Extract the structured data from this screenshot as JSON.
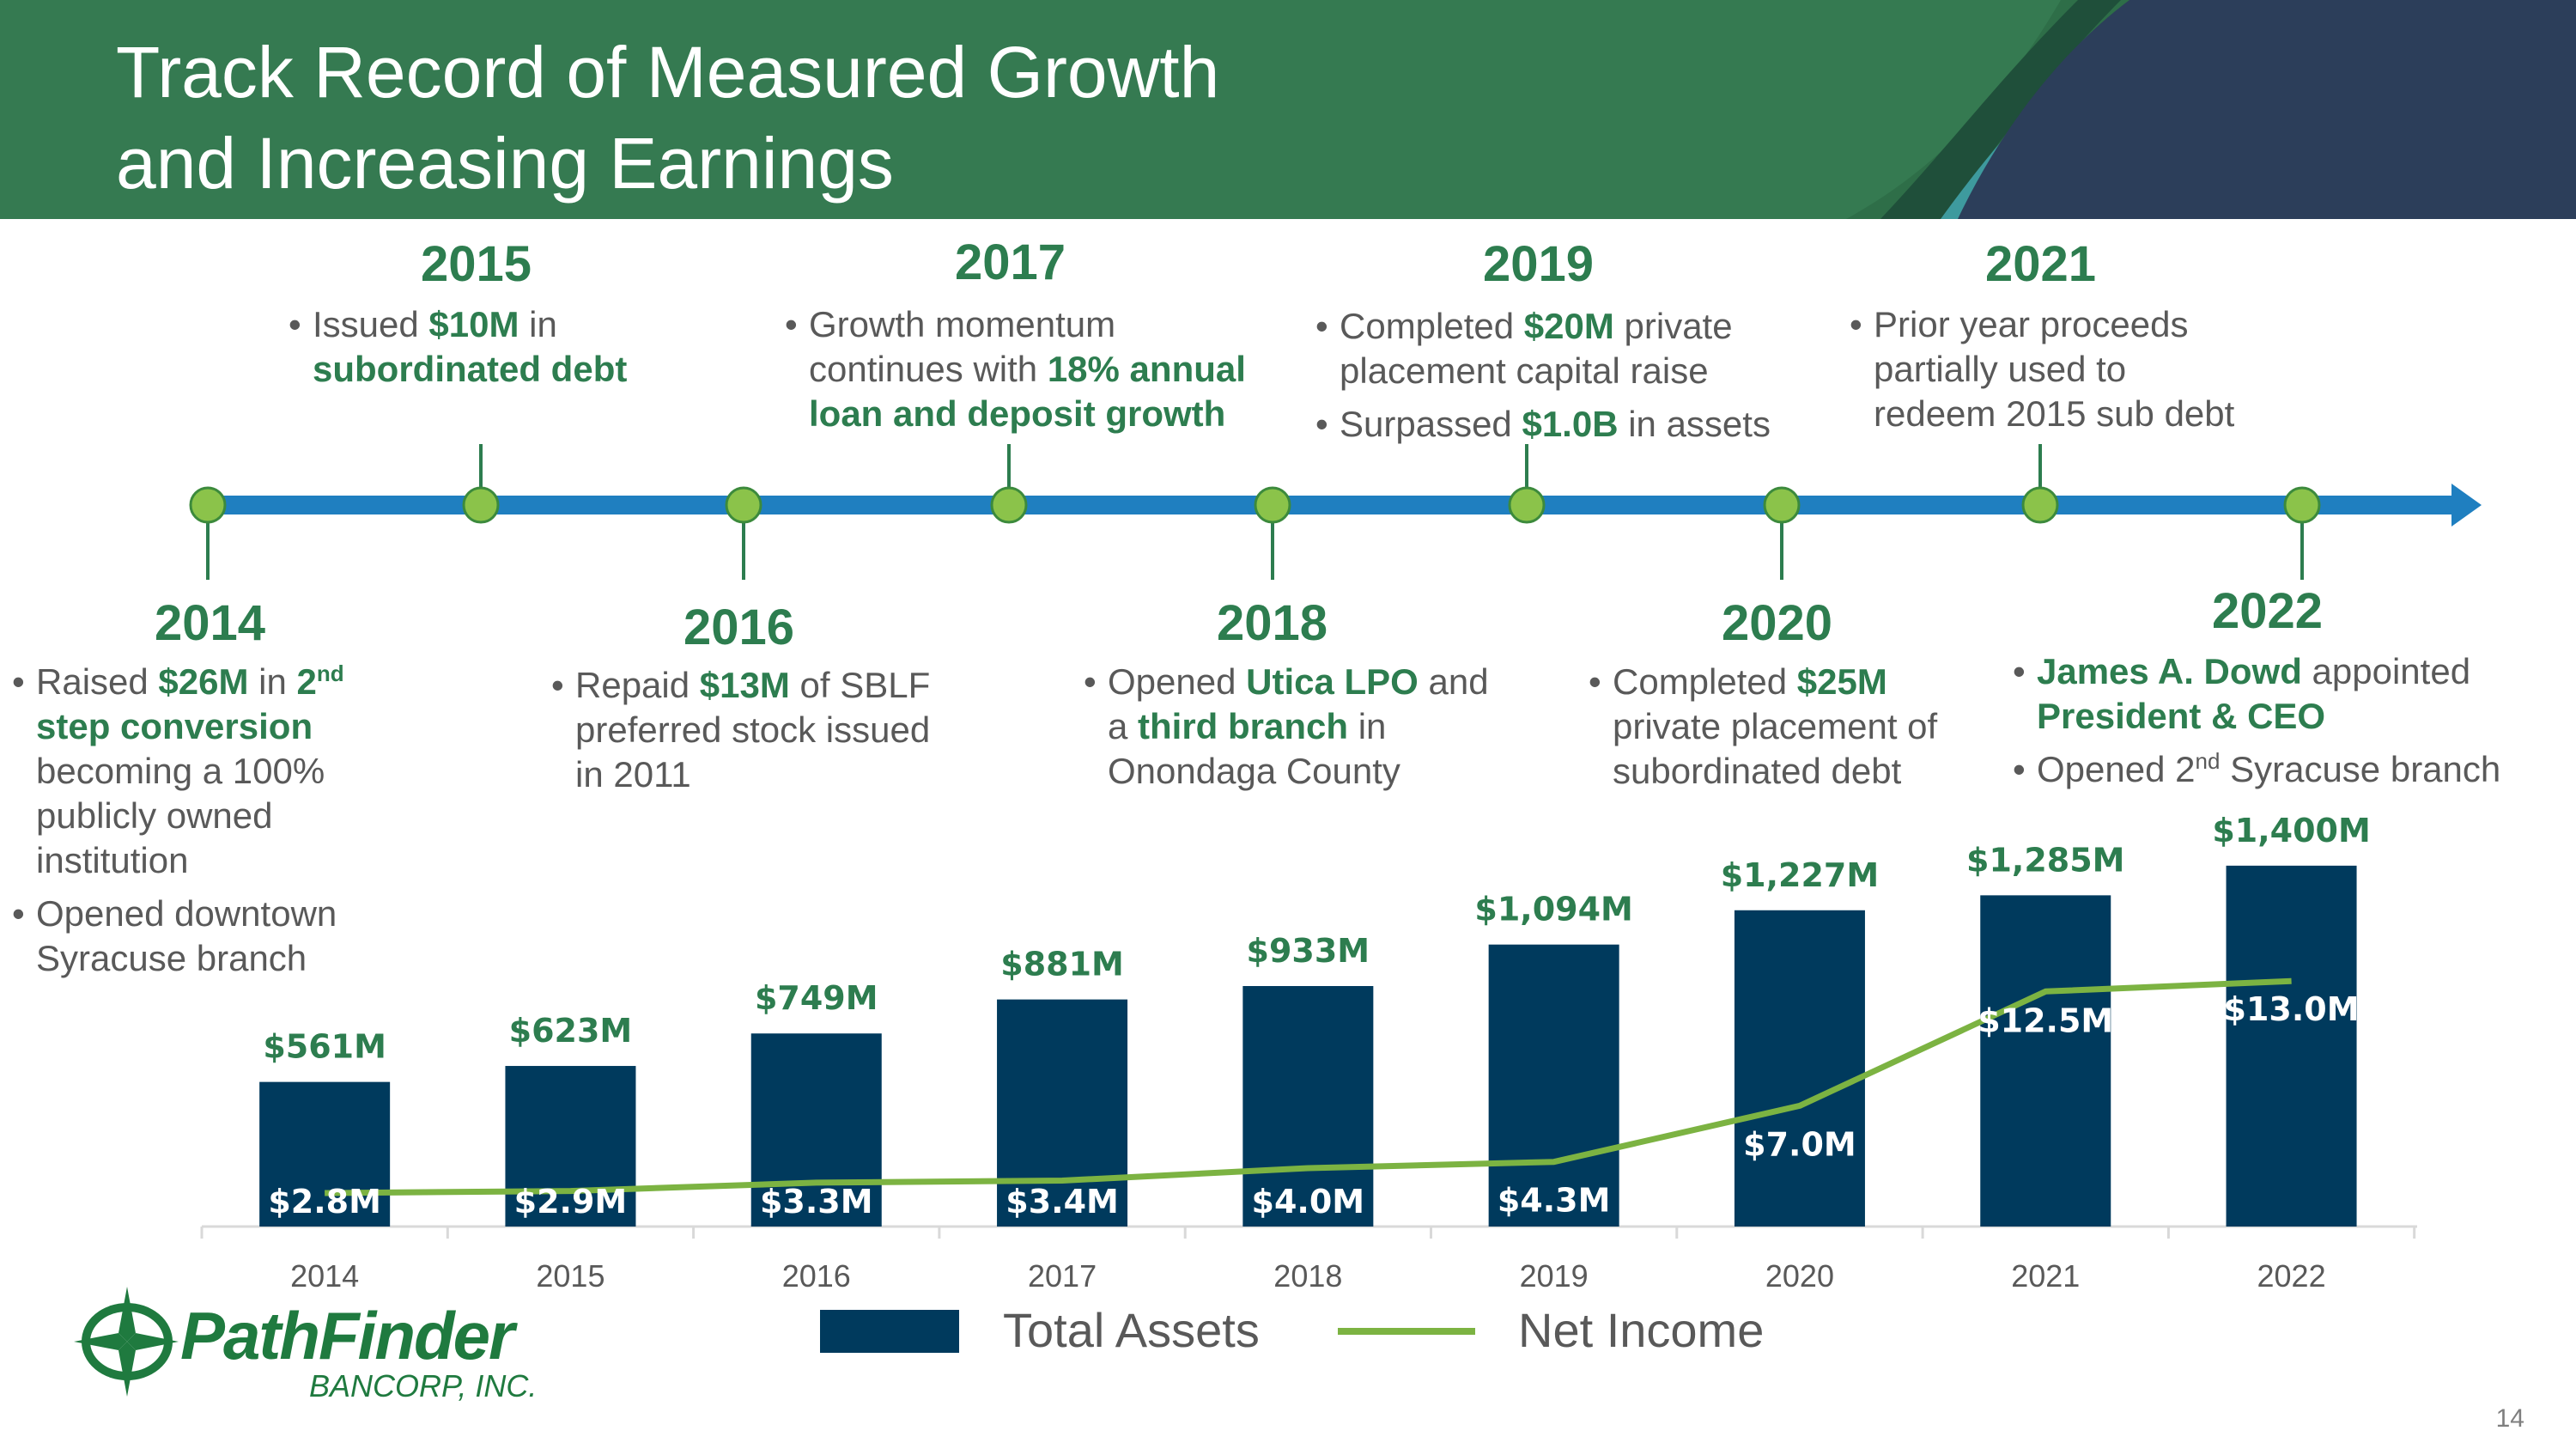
{
  "title": {
    "line1": "Track Record of Measured Growth",
    "line2": "and Increasing Earnings"
  },
  "timeline": {
    "events": [
      {
        "year": "2014"
      },
      {
        "year": "2015"
      },
      {
        "year": "2016"
      },
      {
        "year": "2017"
      },
      {
        "year": "2018"
      },
      {
        "year": "2019"
      },
      {
        "year": "2020"
      },
      {
        "year": "2021"
      },
      {
        "year": "2022"
      }
    ],
    "notes": {
      "y2014": {
        "b1_t1": "Raised ",
        "b1_h1": "$26M",
        "b1_t2": " in ",
        "b1_h2": "2",
        "b1_sup": "nd",
        "b1_h3": " step conversion",
        "b1_t3": " becoming a 100% publicly owned institution",
        "b2": "Opened downtown Syracuse branch"
      },
      "y2015": {
        "b1_t1": "Issued ",
        "b1_h1": "$10M",
        "b1_t2": " in ",
        "b1_h2": "subordinated debt"
      },
      "y2016": {
        "b1_t1": "Repaid ",
        "b1_h1": "$13M",
        "b1_t2": " of SBLF preferred stock issued in 2011"
      },
      "y2017": {
        "b1_t1": "Growth momentum continues with ",
        "b1_h1": "18% annual loan and deposit growth"
      },
      "y2018": {
        "b1_t1": "Opened ",
        "b1_h1": "Utica LPO",
        "b1_t2": " and a ",
        "b1_h2": "third branch",
        "b1_t3": " in Onondaga County"
      },
      "y2019": {
        "b1_t1": "Completed ",
        "b1_h1": "$20M",
        "b1_t2": " private placement capital raise",
        "b2_t1": "Surpassed ",
        "b2_h1": "$1.0B",
        "b2_t2": " in assets"
      },
      "y2020": {
        "b1_t1": "Completed ",
        "b1_h1": "$25M",
        "b1_t2": " private placement of subordinated debt"
      },
      "y2021": {
        "b1": "Prior year proceeds partially used to redeem 2015 sub debt"
      },
      "y2022": {
        "b1_h1": "James A. Dowd",
        "b1_t1": " appointed ",
        "b1_h2": "President & CEO",
        "b2_t1": "Opened 2",
        "b2_sup": "nd",
        "b2_t2": " Syracuse branch"
      }
    }
  },
  "chart_data": {
    "type": "bar",
    "categories": [
      "2014",
      "2015",
      "2016",
      "2017",
      "2018",
      "2019",
      "2020",
      "2021",
      "2022"
    ],
    "series": [
      {
        "name": "Total Assets",
        "kind": "bar",
        "values": [
          561,
          623,
          749,
          881,
          933,
          1094,
          1227,
          1285,
          1400
        ],
        "labels": [
          "$561M",
          "$623M",
          "$749M",
          "$881M",
          "$933M",
          "$1,094M",
          "$1,227M",
          "$1,285M",
          "$1,400M"
        ],
        "color": "#003a5d"
      },
      {
        "name": "Net Income",
        "kind": "line",
        "values": [
          2.8,
          2.9,
          3.3,
          3.4,
          4.0,
          4.3,
          7.0,
          12.5,
          13.0
        ],
        "labels": [
          "$2.8M",
          "$2.9M",
          "$3.3M",
          "$3.4M",
          "$4.0M",
          "$4.3M",
          "$7.0M",
          "$12.5M",
          "$13.0M"
        ],
        "color": "#7cb342"
      }
    ],
    "legend": {
      "total_assets": "Total Assets",
      "net_income": "Net Income"
    },
    "legend_position": "bottom"
  },
  "logo": {
    "name": "PathFinder",
    "sub": "BANCORP, INC."
  },
  "page_number": "14",
  "colors": {
    "header_green": "#357a51",
    "header_navy": "#2c3e5a",
    "accent_green": "#2d7d4f",
    "timeline_blue": "#1f7fc0",
    "node_green": "#8bc34a",
    "bar_navy": "#003a5d",
    "line_green": "#7cb342"
  }
}
